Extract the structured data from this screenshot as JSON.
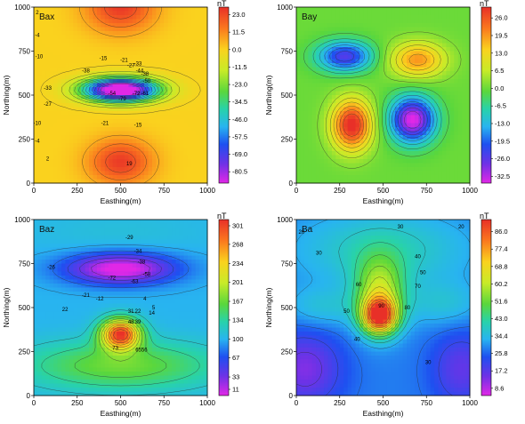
{
  "chart_data": [
    {
      "type": "heatmap",
      "panel_label": "Bax",
      "xlabel": "Easthing(m)",
      "ylabel": "Northing(m)",
      "xlim": [
        0,
        1000
      ],
      "ylim": [
        0,
        1000
      ],
      "x_ticks": [
        "0",
        "250",
        "500",
        "750",
        "1000"
      ],
      "y_ticks": [
        "0",
        "250",
        "500",
        "750",
        "1000"
      ],
      "colorbar_unit": "nT",
      "colorbar_ticks": [
        "23.0",
        "11.5",
        "0.0",
        "-11.5",
        "-23.0",
        "-34.5",
        "-46.0",
        "-57.5",
        "-69.0",
        "-80.5"
      ],
      "colorbar_range": [
        -88,
        28
      ],
      "anomalies": [
        {
          "x": 500,
          "y": 1000,
          "sx": 140,
          "sy": 100,
          "amp": 26
        },
        {
          "x": 500,
          "y": 120,
          "sx": 130,
          "sy": 90,
          "amp": 26
        },
        {
          "x": 500,
          "y": 530,
          "sx": 150,
          "sy": 45,
          "amp": -110
        }
      ],
      "contour_labels": [
        {
          "x": 20,
          "y": 960,
          "text": "2"
        },
        {
          "x": 20,
          "y": 830,
          "text": "-4"
        },
        {
          "x": 30,
          "y": 710,
          "text": "-10"
        },
        {
          "x": 400,
          "y": 700,
          "text": "-15"
        },
        {
          "x": 520,
          "y": 690,
          "text": "-21"
        },
        {
          "x": 560,
          "y": 660,
          "text": "-27"
        },
        {
          "x": 600,
          "y": 670,
          "text": "-33"
        },
        {
          "x": 610,
          "y": 630,
          "text": "-44"
        },
        {
          "x": 640,
          "y": 610,
          "text": "-38"
        },
        {
          "x": 300,
          "y": 630,
          "text": "-38"
        },
        {
          "x": 80,
          "y": 530,
          "text": "-33"
        },
        {
          "x": 80,
          "y": 440,
          "text": "-27"
        },
        {
          "x": 20,
          "y": 330,
          "text": "-10"
        },
        {
          "x": 20,
          "y": 230,
          "text": "-4"
        },
        {
          "x": 80,
          "y": 130,
          "text": "2"
        },
        {
          "x": 450,
          "y": 500,
          "text": "-54"
        },
        {
          "x": 510,
          "y": 470,
          "text": "-79"
        },
        {
          "x": 590,
          "y": 500,
          "text": "-72"
        },
        {
          "x": 640,
          "y": 500,
          "text": "-61"
        },
        {
          "x": 650,
          "y": 570,
          "text": "-50"
        },
        {
          "x": 410,
          "y": 330,
          "text": "-21"
        },
        {
          "x": 600,
          "y": 320,
          "text": "-15"
        },
        {
          "x": 550,
          "y": 100,
          "text": "19"
        }
      ]
    },
    {
      "type": "heatmap",
      "panel_label": "Bay",
      "xlabel": "Easthing(m)",
      "ylabel": "Northing(m)",
      "xlim": [
        0,
        1000
      ],
      "ylim": [
        0,
        1000
      ],
      "x_ticks": [
        "0",
        "250",
        "500",
        "750",
        "1000"
      ],
      "y_ticks": [
        "0",
        "250",
        "500",
        "750",
        "1000"
      ],
      "colorbar_unit": "nT",
      "colorbar_ticks": [
        "26.0",
        "19.5",
        "13.0",
        "6.5",
        "0.0",
        "-6.5",
        "-13.0",
        "-19.5",
        "-26.0",
        "-32.5"
      ],
      "colorbar_range": [
        -35,
        30
      ],
      "anomalies": [
        {
          "x": 280,
          "y": 720,
          "sx": 110,
          "sy": 60,
          "amp": -26
        },
        {
          "x": 700,
          "y": 700,
          "sx": 110,
          "sy": 70,
          "amp": 20
        },
        {
          "x": 320,
          "y": 330,
          "sx": 80,
          "sy": 100,
          "amp": 32
        },
        {
          "x": 670,
          "y": 360,
          "sx": 90,
          "sy": 90,
          "amp": -36
        }
      ],
      "contour_labels": []
    },
    {
      "type": "heatmap",
      "panel_label": "Baz",
      "xlabel": "Easthing(m)",
      "ylabel": "Northing(m)",
      "xlim": [
        0,
        1000
      ],
      "ylim": [
        0,
        1000
      ],
      "x_ticks": [
        "0",
        "250",
        "500",
        "750",
        "1000"
      ],
      "y_ticks": [
        "0",
        "250",
        "500",
        "750",
        "1000"
      ],
      "colorbar_unit": "nT",
      "colorbar_ticks": [
        "301",
        "268",
        "234",
        "201",
        "167",
        "134",
        "100",
        "67",
        "33",
        "11"
      ],
      "colorbar_range": [
        0,
        312
      ],
      "base": 100,
      "anomalies": [
        {
          "x": 500,
          "y": 720,
          "sx": 220,
          "sy": 60,
          "amp": -110
        },
        {
          "x": 500,
          "y": 350,
          "sx": 80,
          "sy": 60,
          "amp": 205
        },
        {
          "x": 500,
          "y": 170,
          "sx": 400,
          "sy": 100,
          "amp": 70
        },
        {
          "x": 500,
          "y": 930,
          "sx": 400,
          "sy": 80,
          "amp": 10
        }
      ],
      "contour_labels": [
        {
          "x": 550,
          "y": 890,
          "text": "-29"
        },
        {
          "x": 600,
          "y": 810,
          "text": "-34"
        },
        {
          "x": 620,
          "y": 750,
          "text": "-38"
        },
        {
          "x": 100,
          "y": 720,
          "text": "-26"
        },
        {
          "x": 450,
          "y": 660,
          "text": "-72"
        },
        {
          "x": 580,
          "y": 640,
          "text": "-63"
        },
        {
          "x": 650,
          "y": 680,
          "text": "-58"
        },
        {
          "x": 300,
          "y": 560,
          "text": "-21"
        },
        {
          "x": 380,
          "y": 540,
          "text": "-12"
        },
        {
          "x": 640,
          "y": 540,
          "text": "4"
        },
        {
          "x": 180,
          "y": 480,
          "text": "22"
        },
        {
          "x": 690,
          "y": 490,
          "text": "5"
        },
        {
          "x": 560,
          "y": 470,
          "text": "31"
        },
        {
          "x": 600,
          "y": 470,
          "text": "22"
        },
        {
          "x": 680,
          "y": 460,
          "text": "14"
        },
        {
          "x": 560,
          "y": 410,
          "text": "48"
        },
        {
          "x": 600,
          "y": 410,
          "text": "39"
        },
        {
          "x": 470,
          "y": 260,
          "text": "73"
        },
        {
          "x": 620,
          "y": 250,
          "text": "6556"
        }
      ]
    },
    {
      "type": "heatmap",
      "panel_label": "Ba",
      "xlabel": "Easthing(m)",
      "ylabel": "Northing(m)",
      "xlim": [
        0,
        1000
      ],
      "ylim": [
        0,
        1000
      ],
      "x_ticks": [
        "0",
        "250",
        "500",
        "750",
        "1000"
      ],
      "y_ticks": [
        "0",
        "250",
        "500",
        "750",
        "1000"
      ],
      "colorbar_unit": "nT",
      "colorbar_ticks": [
        "86.0",
        "77.4",
        "68.8",
        "60.2",
        "51.6",
        "43.0",
        "34.4",
        "25.8",
        "17.2",
        "8.6"
      ],
      "colorbar_range": [
        5,
        92
      ],
      "base": 28,
      "anomalies": [
        {
          "x": 480,
          "y": 450,
          "sx": 70,
          "sy": 70,
          "amp": 55
        },
        {
          "x": 480,
          "y": 580,
          "sx": 100,
          "sy": 140,
          "amp": 30
        },
        {
          "x": 500,
          "y": 830,
          "sx": 350,
          "sy": 150,
          "amp": 12
        },
        {
          "x": 150,
          "y": 500,
          "sx": 150,
          "sy": 80,
          "amp": 8
        },
        {
          "x": 850,
          "y": 520,
          "sx": 150,
          "sy": 90,
          "amp": 8
        },
        {
          "x": 50,
          "y": 150,
          "sx": 150,
          "sy": 150,
          "amp": -15
        },
        {
          "x": 950,
          "y": 150,
          "sx": 120,
          "sy": 150,
          "amp": -12
        }
      ],
      "contour_labels": [
        {
          "x": 600,
          "y": 950,
          "text": "30"
        },
        {
          "x": 30,
          "y": 920,
          "text": "20"
        },
        {
          "x": 950,
          "y": 950,
          "text": "20"
        },
        {
          "x": 130,
          "y": 800,
          "text": "30"
        },
        {
          "x": 700,
          "y": 780,
          "text": "40"
        },
        {
          "x": 730,
          "y": 690,
          "text": "50"
        },
        {
          "x": 360,
          "y": 620,
          "text": "60"
        },
        {
          "x": 700,
          "y": 610,
          "text": "70"
        },
        {
          "x": 290,
          "y": 470,
          "text": "50"
        },
        {
          "x": 640,
          "y": 490,
          "text": "80"
        },
        {
          "x": 490,
          "y": 500,
          "text": "90"
        },
        {
          "x": 350,
          "y": 310,
          "text": "40"
        },
        {
          "x": 760,
          "y": 180,
          "text": "30"
        }
      ]
    }
  ]
}
